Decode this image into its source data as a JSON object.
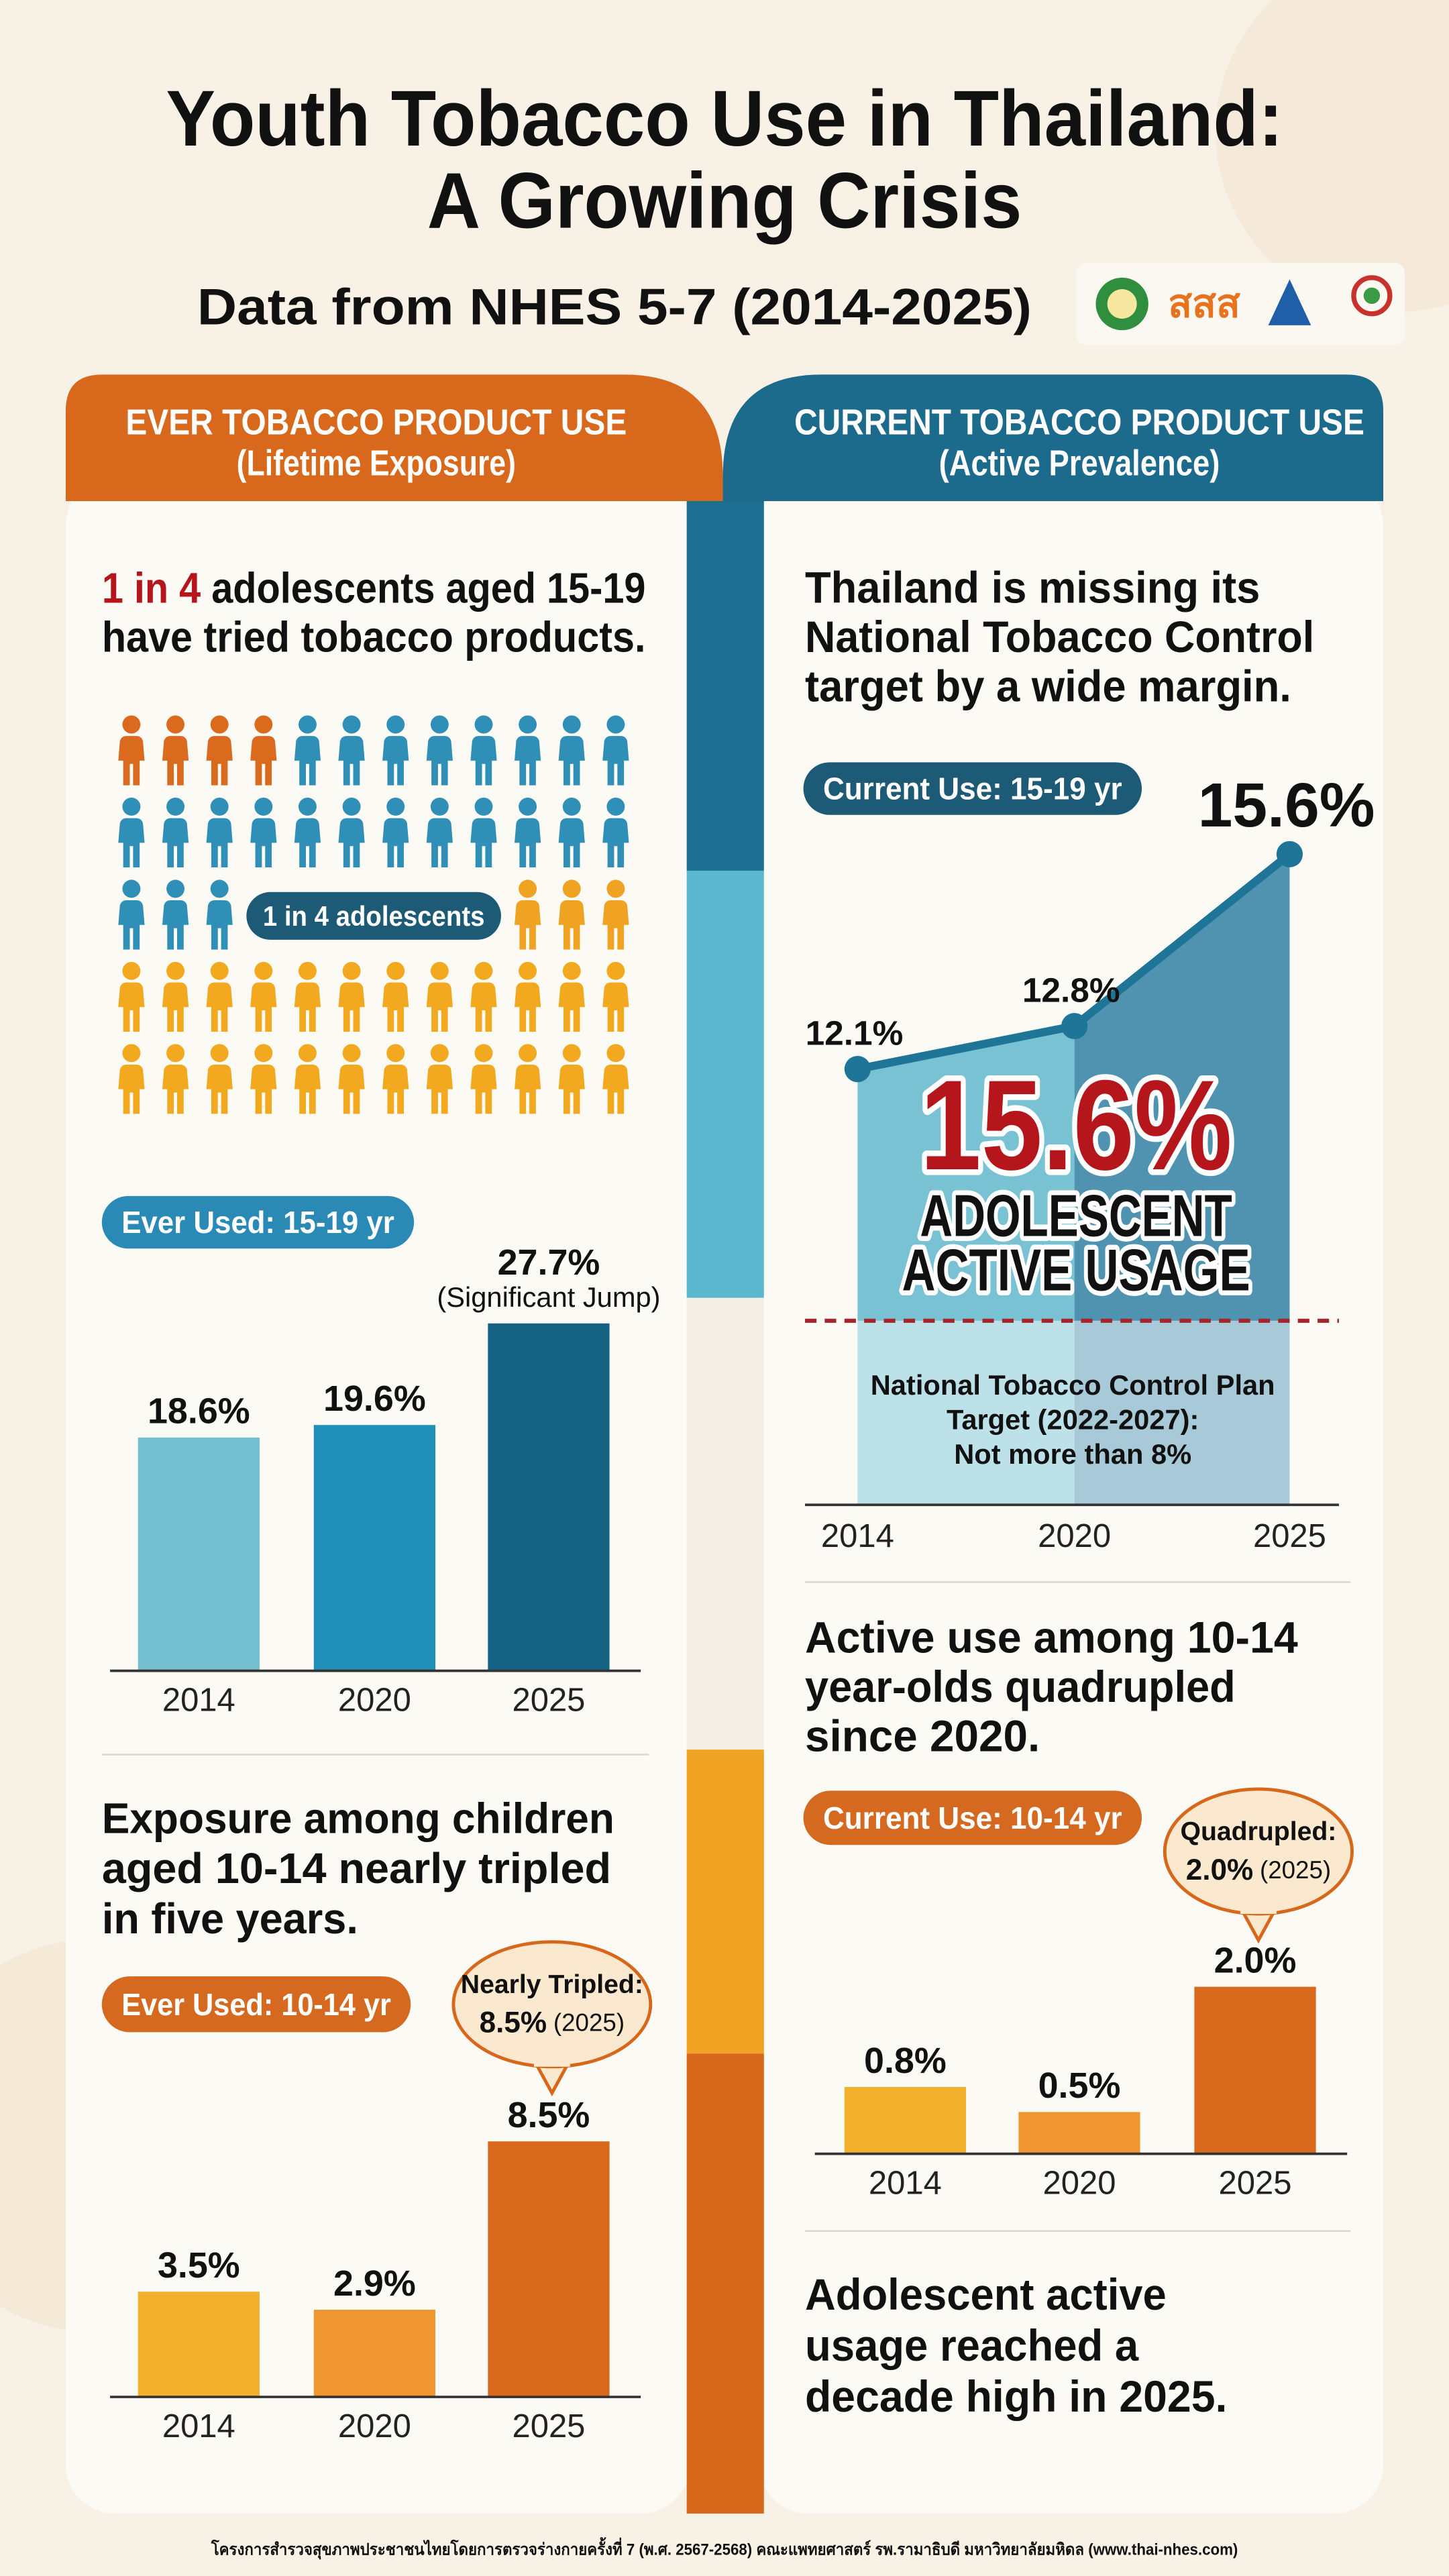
{
  "header": {
    "title_lines": [
      "Youth Tobacco Use in Thailand:",
      "A Growing Crisis"
    ],
    "subtitle": "Data from NHES 5-7 (2014-2025)",
    "logo_text": "สสส"
  },
  "left": {
    "header_lines": [
      "EVER TOBACCO PRODUCT USE",
      "(Lifetime Exposure)"
    ],
    "heading": {
      "highlight": "1 in 4",
      "lines": [
        " adolescents aged 15-19",
        "have tried tobacco products."
      ]
    },
    "pictogram_label": "1 in 4 adolescents",
    "heading2_lines": [
      "Exposure among children",
      "aged 10-14 nearly tripled",
      "in five years."
    ]
  },
  "right": {
    "header_lines": [
      "CURRENT TOBACCO PRODUCT USE",
      "(Active Prevalence)"
    ],
    "heading_lines": [
      "Thailand is missing its",
      "National Tobacco Control",
      "target by a wide margin."
    ],
    "heading2_lines": [
      "Active use among 10-14",
      "year-olds quadrupled",
      "since 2020."
    ],
    "heading3_lines": [
      "Adolescent active",
      "usage reached a",
      "decade high in 2025."
    ]
  },
  "chart_data": [
    {
      "type": "bar",
      "label": "Ever Used: 15-19 yr",
      "label_color": "#2a8ab5",
      "categories": [
        "2014",
        "2020",
        "2025"
      ],
      "values": [
        18.6,
        19.6,
        27.7
      ],
      "value_labels": [
        "18.6%",
        "19.6%",
        "27.7%"
      ],
      "colors": [
        "#74bfd0",
        "#1f8fb8",
        "#156284"
      ],
      "ylim": [
        0,
        30
      ],
      "annotation": "(Significant Jump)"
    },
    {
      "type": "bar",
      "label": "Ever Used: 10-14 yr",
      "label_color": "#d4691f",
      "categories": [
        "2014",
        "2020",
        "2025"
      ],
      "values": [
        3.5,
        2.9,
        8.5
      ],
      "value_labels": [
        "3.5%",
        "2.9%",
        "8.5%"
      ],
      "colors": [
        "#f2b12c",
        "#ef9630",
        "#d8691c"
      ],
      "ylim": [
        0,
        10
      ],
      "callout_bubble": {
        "lines": [
          "Nearly Tripled:"
        ],
        "value_label": "8.5%",
        "note": "(2025)"
      }
    },
    {
      "type": "line",
      "label": "Current Use: 15-19 yr",
      "label_color": "#1d5a75",
      "categories": [
        "2014",
        "2020",
        "2025"
      ],
      "values": [
        12.1,
        12.8,
        15.6
      ],
      "value_labels": [
        "12.1%",
        "12.8%",
        "15.6%"
      ],
      "color": "#1f7597",
      "area_colors": [
        "#79c2d3",
        "#4f93b0"
      ],
      "ylim": [
        5,
        16
      ],
      "target": {
        "value": 8,
        "label_lines": [
          "National Tobacco Control Plan",
          "Target (2022-2027):",
          "Not more than 8%"
        ]
      },
      "callout": {
        "value_label": "15.6%",
        "lines": [
          "ADOLESCENT",
          "ACTIVE USAGE"
        ]
      }
    },
    {
      "type": "bar",
      "label": "Current Use: 10-14 yr",
      "label_color": "#d4691f",
      "categories": [
        "2014",
        "2020",
        "2025"
      ],
      "values": [
        0.8,
        0.5,
        2.0
      ],
      "value_labels": [
        "0.8%",
        "0.5%",
        "2.0%"
      ],
      "colors": [
        "#f2b12c",
        "#ef9630",
        "#d8691c"
      ],
      "ylim": [
        0,
        2.4
      ],
      "callout_bubble": {
        "lines": [
          "Quadrupled:"
        ],
        "value_label": "2.0%",
        "note": "(2025)"
      }
    }
  ],
  "footer": "โครงการสำรวจสุขภาพประชาชนไทยโดยการตรวจร่างกายครั้งที่ 7 (พ.ศ. 2567-2568) คณะแพทยศาสตร์ รพ.รามาธิบดี มหาวิทยาลัยมหิดล (www.thai-nhes.com)"
}
